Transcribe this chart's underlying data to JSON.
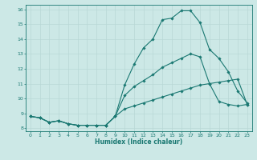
{
  "xlabel": "Humidex (Indice chaleur)",
  "xlim": [
    -0.5,
    23.5
  ],
  "ylim": [
    7.8,
    16.3
  ],
  "xticks": [
    0,
    1,
    2,
    3,
    4,
    5,
    6,
    7,
    8,
    9,
    10,
    11,
    12,
    13,
    14,
    15,
    16,
    17,
    18,
    19,
    20,
    21,
    22,
    23
  ],
  "yticks": [
    8,
    9,
    10,
    11,
    12,
    13,
    14,
    15,
    16
  ],
  "bg_color": "#cce8e6",
  "line_color": "#1a7872",
  "grid_color": "#b8d8d6",
  "curve1_x": [
    0,
    1,
    2,
    3,
    4,
    5,
    6,
    7,
    8,
    9,
    10,
    11,
    12,
    13,
    14,
    15,
    16,
    17,
    18,
    19,
    20,
    21,
    22,
    23
  ],
  "curve1_y": [
    8.8,
    8.7,
    8.4,
    8.5,
    8.3,
    8.2,
    8.2,
    8.2,
    8.2,
    8.8,
    10.9,
    12.3,
    13.4,
    14.0,
    15.3,
    15.4,
    15.9,
    15.9,
    15.1,
    13.3,
    12.7,
    11.8,
    10.5,
    9.7
  ],
  "curve2_x": [
    0,
    1,
    2,
    3,
    4,
    5,
    6,
    7,
    8,
    9,
    10,
    11,
    12,
    13,
    14,
    15,
    16,
    17,
    18,
    19,
    20,
    21,
    22,
    23
  ],
  "curve2_y": [
    8.8,
    8.7,
    8.4,
    8.5,
    8.3,
    8.2,
    8.2,
    8.2,
    8.2,
    8.8,
    10.2,
    10.8,
    11.2,
    11.6,
    12.1,
    12.4,
    12.7,
    13.0,
    12.8,
    11.0,
    9.8,
    9.6,
    9.5,
    9.6
  ],
  "curve3_x": [
    0,
    1,
    2,
    3,
    4,
    5,
    6,
    7,
    8,
    9,
    10,
    11,
    12,
    13,
    14,
    15,
    16,
    17,
    18,
    19,
    20,
    21,
    22,
    23
  ],
  "curve3_y": [
    8.8,
    8.7,
    8.4,
    8.5,
    8.3,
    8.2,
    8.2,
    8.2,
    8.2,
    8.8,
    9.3,
    9.5,
    9.7,
    9.9,
    10.1,
    10.3,
    10.5,
    10.7,
    10.9,
    11.0,
    11.1,
    11.2,
    11.3,
    9.6
  ]
}
